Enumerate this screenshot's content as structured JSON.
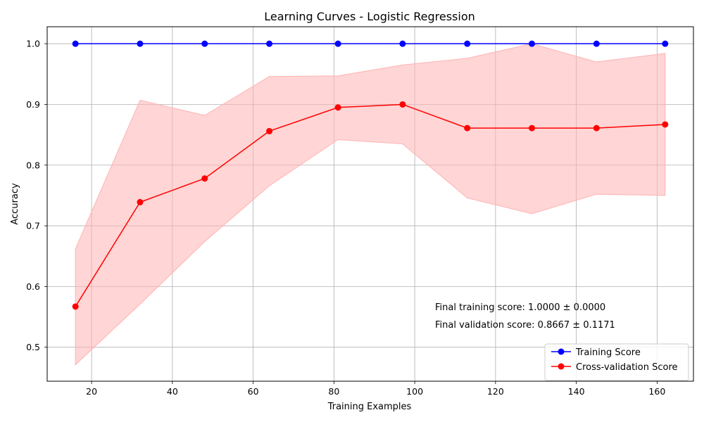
{
  "chart_data": {
    "type": "line",
    "title": "Learning Curves - Logistic Regression",
    "xlabel": "Training Examples",
    "ylabel": "Accuracy",
    "xlim": [
      9,
      169
    ],
    "ylim": [
      0.444,
      1.028
    ],
    "xticks": [
      20,
      40,
      60,
      80,
      100,
      120,
      140,
      160
    ],
    "yticks": [
      0.5,
      0.6,
      0.7,
      0.8,
      0.9,
      1.0
    ],
    "ytick_labels": [
      "0.5",
      "0.6",
      "0.7",
      "0.8",
      "0.9",
      "1.0"
    ],
    "grid": true,
    "legend_position": "bottom-right",
    "x": [
      16,
      32,
      48,
      64,
      81,
      97,
      113,
      129,
      145,
      162
    ],
    "series": [
      {
        "name": "Training Score",
        "color": "#0000ff",
        "marker": "circle",
        "values": [
          1.0,
          1.0,
          1.0,
          1.0,
          1.0,
          1.0,
          1.0,
          1.0,
          1.0,
          1.0
        ]
      },
      {
        "name": "Cross-validation Score",
        "color": "#ff0000",
        "marker": "circle",
        "values": [
          0.567,
          0.739,
          0.778,
          0.856,
          0.895,
          0.9,
          0.861,
          0.861,
          0.861,
          0.867
        ],
        "band_upper": [
          0.662,
          0.907,
          0.882,
          0.946,
          0.947,
          0.965,
          0.976,
          1.0,
          0.97,
          0.984
        ],
        "band_lower": [
          0.471,
          0.571,
          0.674,
          0.766,
          0.842,
          0.835,
          0.746,
          0.72,
          0.752,
          0.75
        ],
        "band_color": "#ffb3b3"
      }
    ],
    "annotations": [
      "Final training score: 1.0000 ± 0.0000",
      "Final validation score: 0.8667 ± 0.1171"
    ]
  }
}
